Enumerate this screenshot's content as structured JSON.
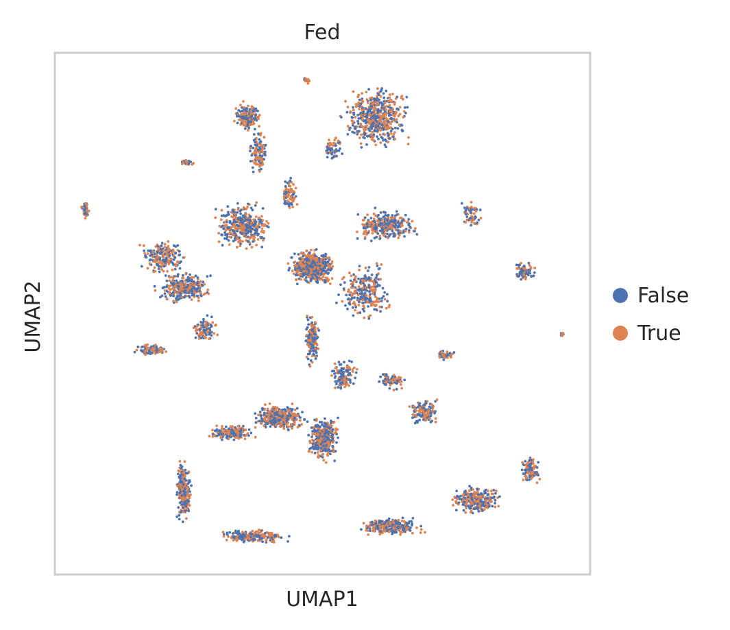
{
  "chart_data": {
    "type": "scatter",
    "title": "Fed",
    "xlabel": "UMAP1",
    "ylabel": "UMAP2",
    "grid": false,
    "ticks": false,
    "legend_position": "right",
    "xlim": [
      0,
      100
    ],
    "ylim": [
      0,
      100
    ],
    "series": [
      {
        "name": "False",
        "color": "#4c72b0"
      },
      {
        "name": "True",
        "color": "#dd8452"
      }
    ],
    "note_regions_in_data_units": true,
    "regions": [
      {
        "cx": 48,
        "cy": 59,
        "rx": 5,
        "ry": 4,
        "n": 520
      },
      {
        "cx": 35,
        "cy": 67,
        "rx": 6,
        "ry": 5,
        "n": 380
      },
      {
        "cx": 24,
        "cy": 55,
        "rx": 6,
        "ry": 3.5,
        "n": 300
      },
      {
        "cx": 20,
        "cy": 61,
        "rx": 5,
        "ry": 4,
        "n": 200
      },
      {
        "cx": 18,
        "cy": 43,
        "rx": 3.5,
        "ry": 1.2,
        "n": 110
      },
      {
        "cx": 28,
        "cy": 47,
        "rx": 3,
        "ry": 3,
        "n": 90
      },
      {
        "cx": 60,
        "cy": 88,
        "rx": 7,
        "ry": 7,
        "n": 520
      },
      {
        "cx": 62,
        "cy": 67,
        "rx": 7,
        "ry": 3.5,
        "n": 320
      },
      {
        "cx": 58,
        "cy": 54,
        "rx": 6,
        "ry": 6,
        "n": 260
      },
      {
        "cx": 48,
        "cy": 45,
        "rx": 1.6,
        "ry": 6,
        "n": 160
      },
      {
        "cx": 42,
        "cy": 30,
        "rx": 6,
        "ry": 3,
        "n": 360
      },
      {
        "cx": 50,
        "cy": 26,
        "rx": 3.5,
        "ry": 5,
        "n": 340
      },
      {
        "cx": 33,
        "cy": 27,
        "rx": 5,
        "ry": 2,
        "n": 180
      },
      {
        "cx": 24,
        "cy": 16,
        "rx": 1.8,
        "ry": 7,
        "n": 220
      },
      {
        "cx": 37,
        "cy": 7,
        "rx": 8,
        "ry": 1.5,
        "n": 200
      },
      {
        "cx": 63,
        "cy": 9,
        "rx": 7,
        "ry": 2,
        "n": 260
      },
      {
        "cx": 79,
        "cy": 14,
        "rx": 6,
        "ry": 3,
        "n": 260
      },
      {
        "cx": 89,
        "cy": 20,
        "rx": 2,
        "ry": 3,
        "n": 120
      },
      {
        "cx": 69,
        "cy": 31,
        "rx": 3.5,
        "ry": 3,
        "n": 130
      },
      {
        "cx": 88,
        "cy": 58,
        "rx": 2.5,
        "ry": 2,
        "n": 90
      },
      {
        "cx": 54,
        "cy": 38,
        "rx": 3,
        "ry": 4,
        "n": 120
      },
      {
        "cx": 36,
        "cy": 88,
        "rx": 3,
        "ry": 3,
        "n": 160
      },
      {
        "cx": 38,
        "cy": 81,
        "rx": 2,
        "ry": 5,
        "n": 120
      },
      {
        "cx": 52,
        "cy": 82,
        "rx": 2,
        "ry": 3,
        "n": 60
      },
      {
        "cx": 5.5,
        "cy": 70,
        "rx": 0.8,
        "ry": 2.2,
        "n": 45
      },
      {
        "cx": 24.5,
        "cy": 79,
        "rx": 1.8,
        "ry": 0.8,
        "n": 30
      },
      {
        "cx": 47,
        "cy": 95,
        "rx": 1,
        "ry": 0.7,
        "n": 15
      },
      {
        "cx": 78,
        "cy": 69,
        "rx": 2.5,
        "ry": 3,
        "n": 60
      },
      {
        "cx": 73,
        "cy": 42,
        "rx": 2.2,
        "ry": 1,
        "n": 45
      },
      {
        "cx": 95,
        "cy": 46,
        "rx": 0.7,
        "ry": 0.5,
        "n": 8
      },
      {
        "cx": 44,
        "cy": 73,
        "rx": 2,
        "ry": 4,
        "n": 70
      },
      {
        "cx": 63,
        "cy": 37,
        "rx": 3,
        "ry": 2,
        "n": 70
      }
    ]
  }
}
